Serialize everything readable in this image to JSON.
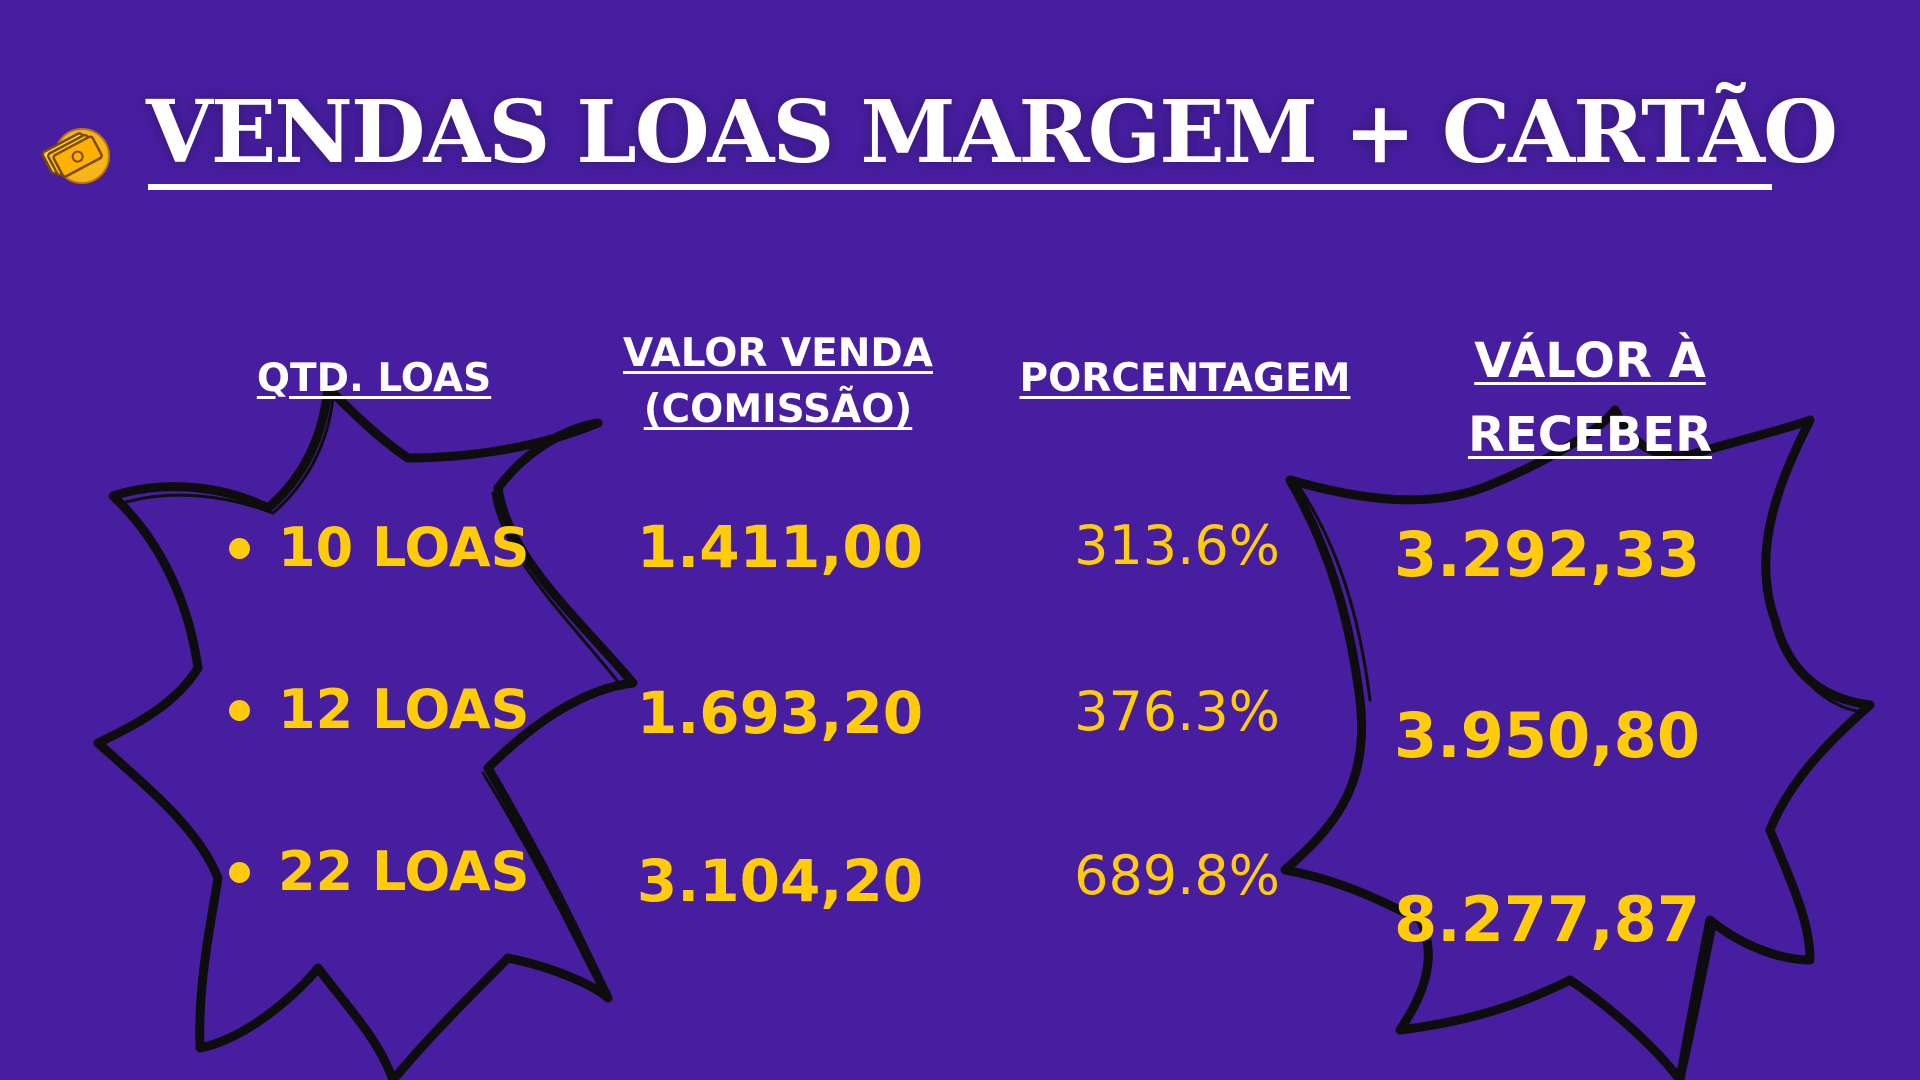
{
  "title": "VENDAS LOAS MARGEM + CARTÃO",
  "colors": {
    "background": "#471ea0",
    "title": "#ffffff",
    "values": "#ffcc0a",
    "burst_outline": "#0d0d0d"
  },
  "logo_icon": "money-bills-icon",
  "headers": {
    "qtd": "QTD. LOAS",
    "valor_line1": "VALOR VENDA",
    "valor_line2": "(COMISSÃO)",
    "porcentagem": "PORCENTAGEM",
    "receber_line1": "VÁLOR À",
    "receber_line2": "RECEBER"
  },
  "rows": [
    {
      "qtd": "10 LOAS",
      "valor_venda": "1.411,00",
      "porcentagem": "313.6%",
      "valor_receber": "3.292,33"
    },
    {
      "qtd": "12 LOAS",
      "valor_venda": "1.693,20",
      "porcentagem": "376.3%",
      "valor_receber": "3.950,80"
    },
    {
      "qtd": "22 LOAS",
      "valor_venda": "3.104,20",
      "porcentagem": "689.8%",
      "valor_receber": "8.277,87"
    }
  ]
}
